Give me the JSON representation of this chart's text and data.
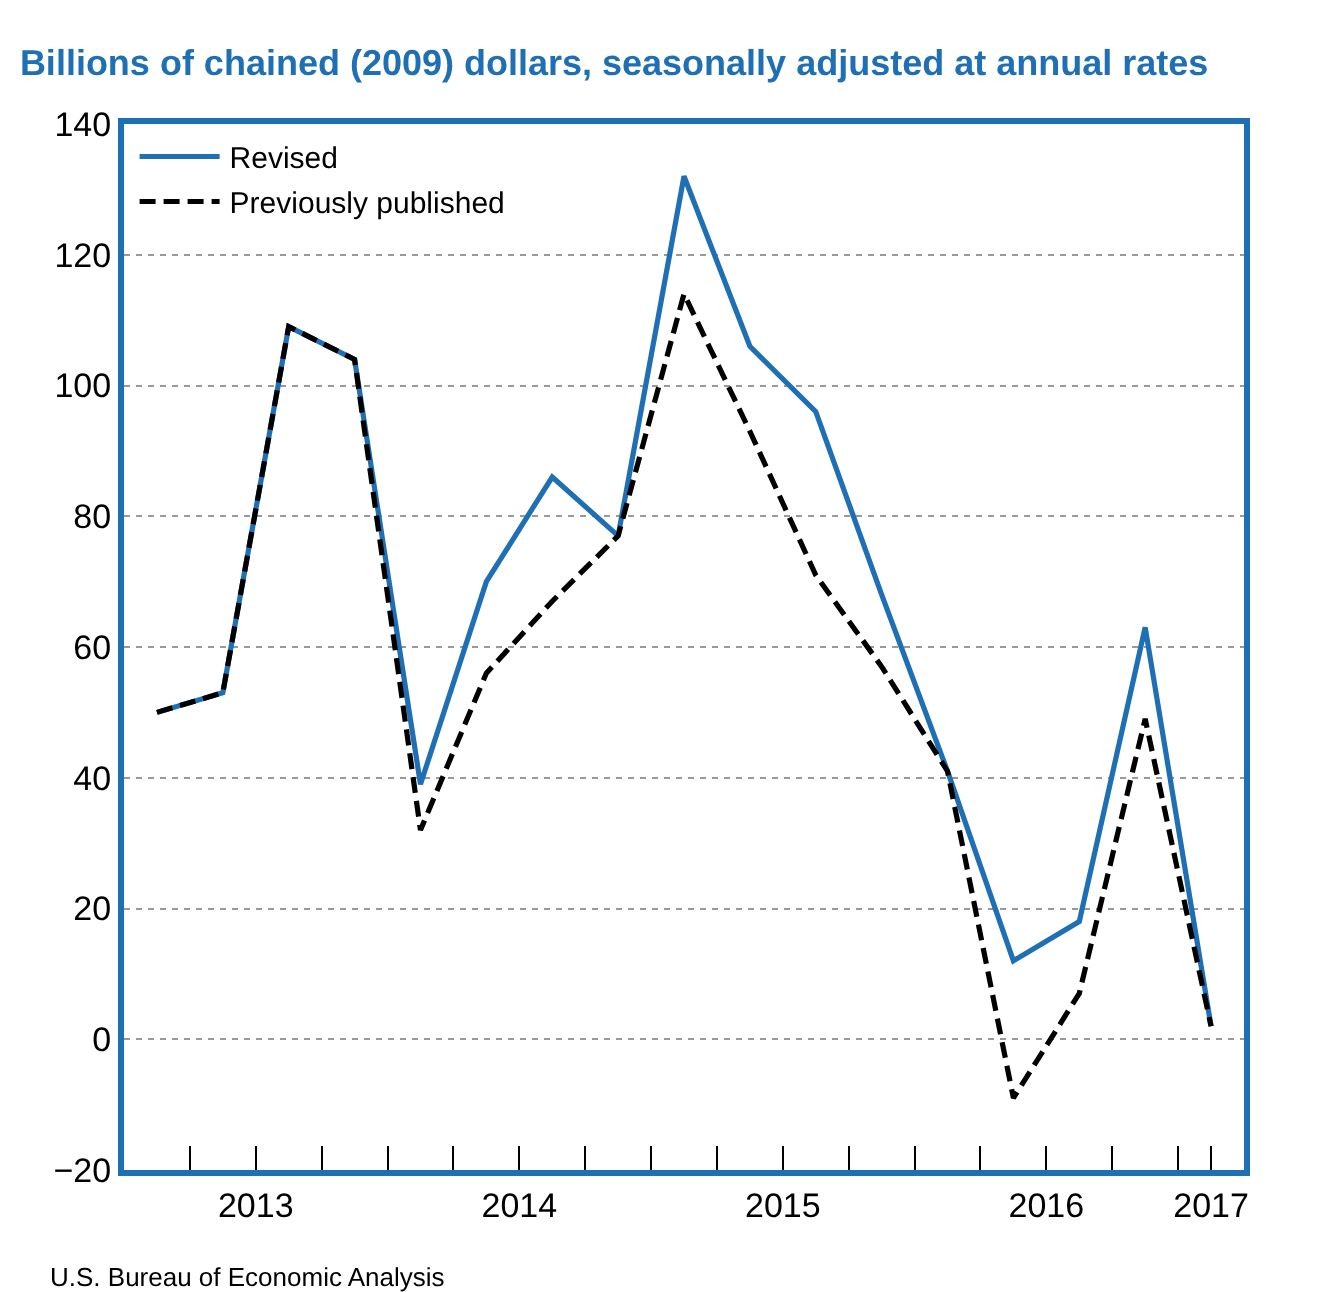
{
  "chart_data": {
    "type": "line",
    "title": "Billions of chained (2009) dollars, seasonally adjusted at annual rates",
    "x": [
      2013.125,
      2013.375,
      2013.625,
      2013.875,
      2014.125,
      2014.375,
      2014.625,
      2014.875,
      2015.125,
      2015.375,
      2015.625,
      2015.875,
      2016.125,
      2016.375,
      2016.625,
      2016.875,
      2017.125
    ],
    "series": [
      {
        "name": "Revised",
        "color": "#1f6fb5",
        "line_style": "solid",
        "values": [
          50,
          53,
          109,
          104,
          39,
          70,
          86,
          77,
          132,
          106,
          96,
          68,
          41,
          12,
          18,
          63,
          2
        ]
      },
      {
        "name": "Previously published",
        "color": "#000000",
        "line_style": "dashed",
        "values": [
          50,
          53,
          109,
          104,
          32,
          56,
          67,
          77,
          114,
          93,
          71,
          57,
          41,
          -9,
          7,
          49,
          2
        ]
      }
    ],
    "xlim": [
      2013,
      2017.25
    ],
    "xticks": [
      {
        "value": 2013.25,
        "label": null
      },
      {
        "value": 2013.5,
        "label": "2013"
      },
      {
        "value": 2013.75,
        "label": null
      },
      {
        "value": 2014,
        "label": null
      },
      {
        "value": 2014.25,
        "label": null
      },
      {
        "value": 2014.5,
        "label": "2014"
      },
      {
        "value": 2014.75,
        "label": null
      },
      {
        "value": 2015,
        "label": null
      },
      {
        "value": 2015.25,
        "label": null
      },
      {
        "value": 2015.5,
        "label": "2015"
      },
      {
        "value": 2015.75,
        "label": null
      },
      {
        "value": 2016,
        "label": null
      },
      {
        "value": 2016.25,
        "label": null
      },
      {
        "value": 2016.5,
        "label": "2016"
      },
      {
        "value": 2016.75,
        "label": null
      },
      {
        "value": 2017,
        "label": null
      },
      {
        "value": 2017.125,
        "label": "2017"
      }
    ],
    "ylim": [
      -20,
      140
    ],
    "yticks": [
      -20,
      0,
      20,
      40,
      60,
      80,
      100,
      120,
      140
    ],
    "grid": "y",
    "legend": "top left",
    "marker": "none",
    "annotations": [
      "U.S. Bureau of Economic Analysis"
    ]
  }
}
